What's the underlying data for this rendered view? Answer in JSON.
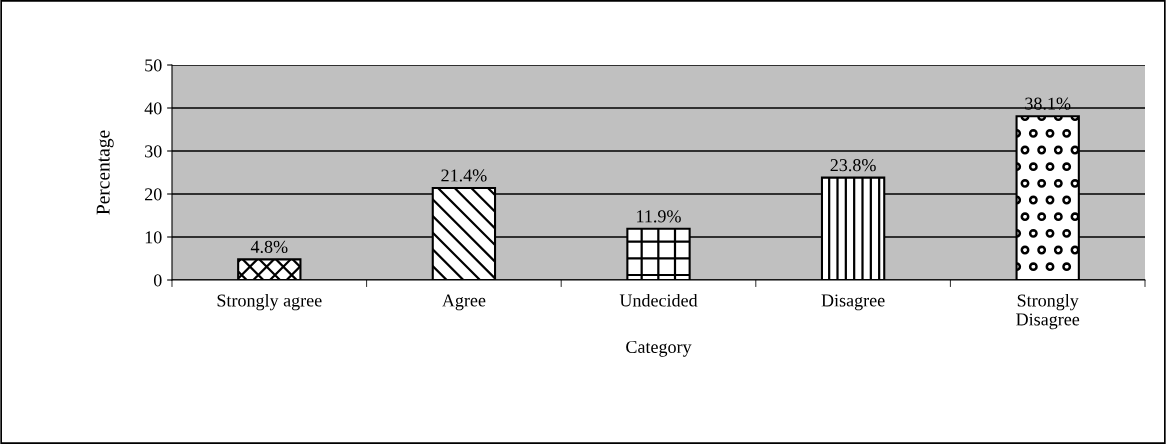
{
  "chart_data": {
    "type": "bar",
    "xlabel": "Category",
    "ylabel": "Percentage",
    "categories": [
      "Strongly agree",
      "Agree",
      "Undecided",
      "Disagree",
      "Strongly\nDisagree"
    ],
    "values": [
      4.8,
      21.4,
      11.9,
      23.8,
      38.1
    ],
    "value_labels": [
      "4.8%",
      "21.4%",
      "11.9%",
      "23.8%",
      "38.1%"
    ],
    "color": "#000000",
    "ylim": [
      0,
      50
    ],
    "yticks": [
      0,
      10,
      20,
      30,
      40,
      50
    ],
    "grid": "y",
    "legend": false
  }
}
